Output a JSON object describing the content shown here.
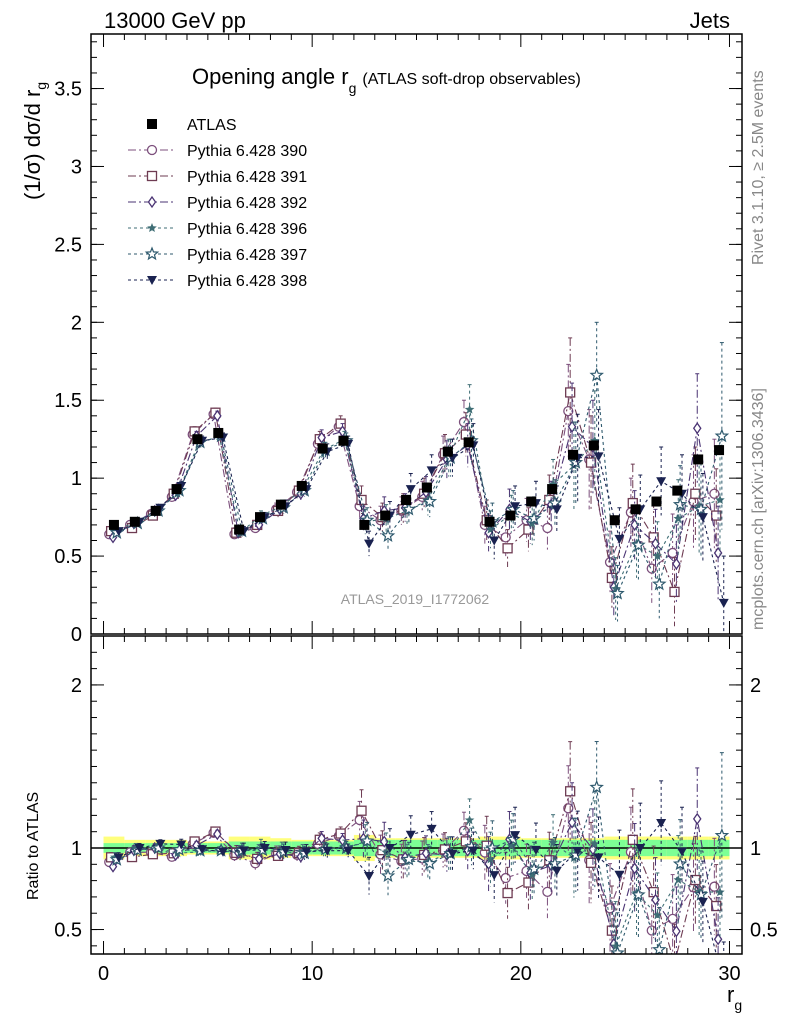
{
  "header": {
    "left": "13000 GeV pp",
    "right": "Jets"
  },
  "title_main": "Opening angle r",
  "title_sub": "g",
  "title_paren": "(ATLAS soft-drop observables)",
  "side_rivet": "Rivet 3.1.10, ≥ 2.5M events",
  "side_mcplots": "mcplots.cern.ch [arXiv:1306.3436]",
  "watermark": "ATLAS_2019_I1772062",
  "ylabel_main": "(1/σ) dσ/d r",
  "ylabel_main_sub": "g",
  "ylabel_ratio": "Ratio to ATLAS",
  "xlabel": "r",
  "xlabel_sub": "g",
  "chart_data": {
    "type": "scatter",
    "x": [
      0.5,
      1.5,
      2.5,
      3.5,
      4.5,
      5.5,
      6.5,
      7.5,
      8.5,
      9.5,
      10.5,
      11.5,
      12.5,
      13.5,
      14.5,
      15.5,
      16.5,
      17.5,
      18.5,
      19.5,
      20.5,
      21.5,
      22.5,
      23.5,
      24.5,
      25.5,
      26.5,
      27.5,
      28.5,
      29.5
    ],
    "xlim": [
      -0.6,
      30.6
    ],
    "ylim_main": [
      0,
      3.85
    ],
    "ylim_ratio": [
      0.35,
      2.3
    ],
    "xticks": [
      0,
      10,
      20,
      30
    ],
    "xtick_labels": [
      "0",
      "10",
      "20",
      "30"
    ],
    "yticks_main": [
      0,
      0.5,
      1,
      1.5,
      2,
      2.5,
      3,
      3.5
    ],
    "ytick_labels_main": [
      "0",
      "0.5",
      "1",
      "1.5",
      "2",
      "2.5",
      "3",
      "3.5"
    ],
    "yticks_ratio": [
      0.5,
      1,
      2
    ],
    "ytick_labels_ratio": [
      "0.5",
      "1",
      "2"
    ],
    "data": {
      "name": "ATLAS",
      "values": [
        0.7,
        0.72,
        0.79,
        0.93,
        1.25,
        1.29,
        0.67,
        0.75,
        0.83,
        0.95,
        1.19,
        1.24,
        0.7,
        0.76,
        0.86,
        0.94,
        1.17,
        1.23,
        0.72,
        0.76,
        0.85,
        0.93,
        1.15,
        1.21,
        0.73,
        0.8,
        0.85,
        0.92,
        1.12,
        1.18
      ],
      "band1_rel": [
        0.03,
        0.03,
        0.03,
        0.03,
        0.03,
        0.03,
        0.04,
        0.04,
        0.04,
        0.04,
        0.04,
        0.04,
        0.05,
        0.05,
        0.05,
        0.05,
        0.05,
        0.05,
        0.05,
        0.05,
        0.05,
        0.05,
        0.05,
        0.05,
        0.05,
        0.05,
        0.05,
        0.05,
        0.05,
        0.05
      ],
      "band2_rel": [
        0.07,
        0.05,
        0.05,
        0.05,
        0.04,
        0.04,
        0.07,
        0.07,
        0.06,
        0.05,
        0.05,
        0.05,
        0.08,
        0.06,
        0.06,
        0.06,
        0.06,
        0.06,
        0.07,
        0.07,
        0.06,
        0.06,
        0.06,
        0.06,
        0.07,
        0.07,
        0.07,
        0.07,
        0.07,
        0.07
      ]
    },
    "series": [
      {
        "name": "Pythia 6.428 390",
        "marker": "circle",
        "color": "#7c4f7c",
        "dash": "8,3,2,3",
        "values": [
          0.64,
          0.7,
          0.77,
          0.88,
          1.28,
          1.41,
          0.64,
          0.68,
          0.8,
          0.91,
          1.22,
          1.33,
          0.82,
          0.73,
          0.79,
          0.88,
          1.15,
          1.36,
          0.7,
          0.62,
          0.73,
          0.68,
          1.43,
          1.12,
          0.46,
          0.78,
          0.42,
          0.52,
          0.85,
          0.9
        ],
        "err": [
          0.02,
          0.02,
          0.02,
          0.03,
          0.03,
          0.03,
          0.03,
          0.03,
          0.04,
          0.04,
          0.05,
          0.05,
          0.08,
          0.09,
          0.09,
          0.1,
          0.12,
          0.14,
          0.12,
          0.12,
          0.14,
          0.15,
          0.3,
          0.32,
          0.2,
          0.22,
          0.22,
          0.25,
          0.3,
          0.35
        ]
      },
      {
        "name": "Pythia 6.428 391",
        "marker": "square",
        "color": "#6e3b52",
        "dash": "8,3,2,3",
        "values": [
          0.66,
          0.68,
          0.76,
          0.9,
          1.3,
          1.42,
          0.65,
          0.7,
          0.79,
          0.92,
          1.25,
          1.35,
          0.86,
          0.75,
          0.8,
          0.9,
          1.16,
          1.28,
          0.73,
          0.55,
          0.67,
          0.86,
          1.55,
          1.1,
          0.36,
          0.84,
          0.62,
          0.27,
          0.9,
          0.76
        ],
        "err": [
          0.02,
          0.02,
          0.02,
          0.03,
          0.03,
          0.03,
          0.03,
          0.03,
          0.04,
          0.04,
          0.05,
          0.05,
          0.09,
          0.09,
          0.1,
          0.1,
          0.12,
          0.14,
          0.13,
          0.12,
          0.14,
          0.16,
          0.35,
          0.3,
          0.2,
          0.25,
          0.24,
          0.22,
          0.3,
          0.3
        ]
      },
      {
        "name": "Pythia 6.428 392",
        "marker": "diamond",
        "color": "#4a3373",
        "dash": "8,3,2,3",
        "values": [
          0.62,
          0.71,
          0.79,
          0.89,
          1.27,
          1.4,
          0.65,
          0.7,
          0.8,
          0.9,
          1.26,
          1.3,
          0.74,
          0.79,
          0.81,
          0.91,
          1.12,
          1.21,
          0.65,
          0.8,
          0.72,
          0.83,
          1.33,
          1.2,
          0.3,
          0.7,
          0.58,
          0.45,
          1.32,
          0.52
        ],
        "err": [
          0.02,
          0.02,
          0.02,
          0.03,
          0.03,
          0.03,
          0.03,
          0.03,
          0.04,
          0.04,
          0.05,
          0.05,
          0.08,
          0.09,
          0.09,
          0.1,
          0.12,
          0.14,
          0.12,
          0.13,
          0.14,
          0.15,
          0.28,
          0.3,
          0.18,
          0.22,
          0.22,
          0.25,
          0.35,
          0.3
        ]
      },
      {
        "name": "Pythia 6.428 396",
        "marker": "star",
        "color": "#3f6e75",
        "dash": "3,3",
        "values": [
          0.66,
          0.72,
          0.79,
          0.9,
          1.22,
          1.27,
          0.65,
          0.76,
          0.82,
          0.93,
          1.18,
          1.25,
          0.72,
          0.74,
          0.79,
          0.86,
          1.13,
          1.44,
          0.67,
          0.77,
          0.71,
          0.96,
          1.08,
          1.24,
          0.29,
          0.58,
          0.5,
          0.74,
          0.82,
          0.86
        ],
        "err": [
          0.02,
          0.02,
          0.02,
          0.03,
          0.03,
          0.03,
          0.03,
          0.03,
          0.04,
          0.04,
          0.05,
          0.05,
          0.08,
          0.09,
          0.09,
          0.1,
          0.12,
          0.16,
          0.12,
          0.12,
          0.14,
          0.16,
          0.28,
          0.32,
          0.2,
          0.22,
          0.22,
          0.25,
          0.3,
          0.35
        ]
      },
      {
        "name": "Pythia 6.428 397",
        "marker": "star-open",
        "color": "#2f5a6e",
        "dash": "3,3",
        "values": [
          0.65,
          0.71,
          0.79,
          0.92,
          1.23,
          1.27,
          0.66,
          0.74,
          0.81,
          0.92,
          1.18,
          1.24,
          0.73,
          0.63,
          0.8,
          0.85,
          1.13,
          1.24,
          0.72,
          0.8,
          0.74,
          0.84,
          1.1,
          1.66,
          0.26,
          0.57,
          0.32,
          0.83,
          0.8,
          1.27
        ],
        "err": [
          0.02,
          0.02,
          0.02,
          0.03,
          0.03,
          0.03,
          0.03,
          0.03,
          0.04,
          0.04,
          0.05,
          0.05,
          0.08,
          0.09,
          0.09,
          0.1,
          0.12,
          0.14,
          0.12,
          0.12,
          0.14,
          0.15,
          0.26,
          0.34,
          0.18,
          0.22,
          0.22,
          0.25,
          0.3,
          0.6
        ]
      },
      {
        "name": "Pythia 6.428 398",
        "marker": "triangle-down",
        "color": "#1a2250",
        "dash": "3,3",
        "values": [
          0.66,
          0.72,
          0.81,
          0.95,
          1.24,
          1.26,
          0.66,
          0.75,
          0.82,
          0.93,
          1.17,
          1.22,
          0.58,
          0.76,
          0.93,
          1.05,
          1.13,
          1.21,
          0.6,
          0.82,
          0.84,
          0.8,
          1.13,
          1.14,
          0.61,
          0.8,
          0.98,
          0.9,
          0.75,
          0.2
        ],
        "err": [
          0.02,
          0.02,
          0.02,
          0.03,
          0.03,
          0.03,
          0.03,
          0.03,
          0.04,
          0.04,
          0.05,
          0.05,
          0.08,
          0.09,
          0.1,
          0.1,
          0.12,
          0.14,
          0.12,
          0.13,
          0.14,
          0.15,
          0.28,
          0.3,
          0.2,
          0.22,
          0.22,
          0.25,
          0.28,
          0.3
        ]
      }
    ]
  }
}
